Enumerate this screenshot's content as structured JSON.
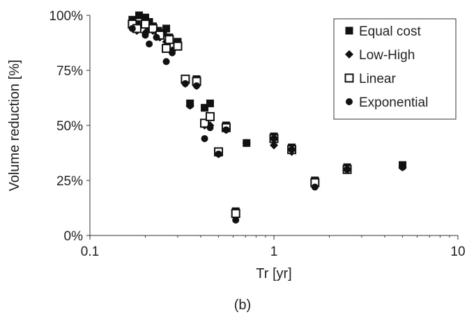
{
  "chart_data": {
    "type": "scatter",
    "title": "",
    "xlabel": "Tr [yr]",
    "ylabel": "Volume reduction [%]",
    "caption": "(b)",
    "x_scale": "log",
    "xlim": [
      0.1,
      10
    ],
    "ylim": [
      0,
      100
    ],
    "x_ticks": [
      0.1,
      1,
      10
    ],
    "x_tick_labels": [
      "0.1",
      "1",
      "10"
    ],
    "y_ticks": [
      0,
      25,
      50,
      75,
      100
    ],
    "y_tick_labels": [
      "0%",
      "25%",
      "50%",
      "75%",
      "100%"
    ],
    "grid": false,
    "legend_position": "top-right",
    "series": [
      {
        "name": "Equal cost",
        "marker": "filled-square",
        "points": [
          [
            0.17,
            98
          ],
          [
            0.18,
            96
          ],
          [
            0.185,
            100
          ],
          [
            0.2,
            99
          ],
          [
            0.21,
            97
          ],
          [
            0.22,
            95
          ],
          [
            0.235,
            93
          ],
          [
            0.25,
            92
          ],
          [
            0.26,
            94
          ],
          [
            0.27,
            90
          ],
          [
            0.3,
            88
          ],
          [
            0.33,
            71
          ],
          [
            0.35,
            60
          ],
          [
            0.38,
            71
          ],
          [
            0.42,
            58
          ],
          [
            0.45,
            60
          ],
          [
            0.5,
            38
          ],
          [
            0.55,
            50
          ],
          [
            0.62,
            11
          ],
          [
            0.71,
            42
          ],
          [
            1.0,
            45
          ],
          [
            1.25,
            40
          ],
          [
            1.67,
            25
          ],
          [
            2.5,
            31
          ],
          [
            5.0,
            32
          ]
        ]
      },
      {
        "name": "Low-High",
        "marker": "filled-diamond",
        "points": [
          [
            0.17,
            95
          ],
          [
            0.18,
            93
          ],
          [
            0.2,
            92
          ],
          [
            0.21,
            94
          ],
          [
            0.22,
            93
          ],
          [
            0.24,
            90
          ],
          [
            0.26,
            88
          ],
          [
            0.28,
            84
          ],
          [
            0.3,
            86
          ],
          [
            0.33,
            69
          ],
          [
            0.35,
            59
          ],
          [
            0.38,
            68
          ],
          [
            0.42,
            50
          ],
          [
            0.45,
            50
          ],
          [
            0.5,
            37
          ],
          [
            0.55,
            48
          ],
          [
            0.62,
            9
          ],
          [
            0.71,
            42
          ],
          [
            1.0,
            41
          ],
          [
            1.25,
            38
          ],
          [
            1.67,
            23
          ],
          [
            2.5,
            30
          ],
          [
            5.0,
            31
          ]
        ]
      },
      {
        "name": "Linear",
        "marker": "open-square",
        "points": [
          [
            0.17,
            96
          ],
          [
            0.18,
            94
          ],
          [
            0.2,
            96
          ],
          [
            0.22,
            94
          ],
          [
            0.24,
            91
          ],
          [
            0.26,
            85
          ],
          [
            0.27,
            89
          ],
          [
            0.3,
            86
          ],
          [
            0.33,
            71
          ],
          [
            0.38,
            70
          ],
          [
            0.42,
            51
          ],
          [
            0.45,
            54
          ],
          [
            0.5,
            38
          ],
          [
            0.55,
            49
          ],
          [
            0.62,
            10
          ],
          [
            1.0,
            44
          ],
          [
            1.25,
            39
          ],
          [
            1.67,
            24
          ],
          [
            2.5,
            30
          ]
        ]
      },
      {
        "name": "Exponential",
        "marker": "filled-circle",
        "points": [
          [
            0.17,
            94
          ],
          [
            0.2,
            91
          ],
          [
            0.21,
            87
          ],
          [
            0.23,
            90
          ],
          [
            0.26,
            79
          ],
          [
            0.28,
            83
          ],
          [
            0.33,
            69
          ],
          [
            0.35,
            59
          ],
          [
            0.38,
            68
          ],
          [
            0.42,
            44
          ],
          [
            0.45,
            49
          ],
          [
            0.5,
            37
          ],
          [
            0.55,
            48
          ],
          [
            0.62,
            7
          ],
          [
            1.0,
            44
          ],
          [
            1.25,
            39
          ],
          [
            1.67,
            22
          ],
          [
            2.5,
            30
          ],
          [
            5.0,
            31
          ]
        ]
      }
    ]
  }
}
